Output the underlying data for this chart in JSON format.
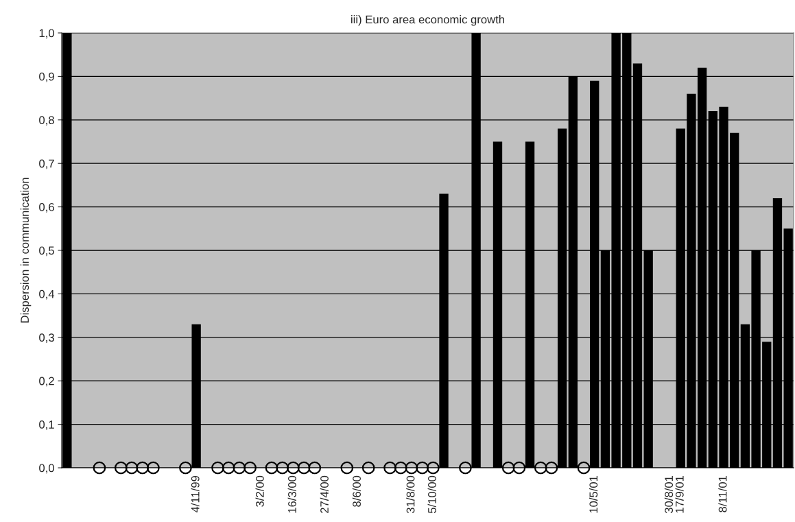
{
  "chart_data": {
    "type": "bar",
    "title": "iii) Euro area economic growth",
    "ylabel": "Dispersion in communication",
    "categories": [
      null,
      null,
      null,
      null,
      null,
      null,
      null,
      null,
      null,
      null,
      null,
      null,
      "4/11/99",
      null,
      null,
      null,
      null,
      null,
      "3/2/00",
      null,
      null,
      "16/3/00",
      null,
      null,
      "27/4/00",
      null,
      null,
      "8/6/00",
      null,
      null,
      null,
      null,
      "31/8/00",
      null,
      "5/10/00",
      null,
      null,
      null,
      null,
      null,
      null,
      null,
      null,
      null,
      null,
      null,
      null,
      null,
      null,
      "10/5/01",
      null,
      null,
      null,
      null,
      null,
      null,
      "30/8/01",
      "17/9/01",
      null,
      null,
      null,
      "8/11/01",
      null,
      null,
      null,
      null,
      null,
      null
    ],
    "series": [
      {
        "color": "#000000",
        "values": [
          1.0,
          null,
          null,
          null,
          null,
          null,
          null,
          null,
          null,
          null,
          null,
          null,
          0.33,
          null,
          null,
          null,
          null,
          null,
          null,
          null,
          null,
          null,
          null,
          null,
          null,
          null,
          null,
          null,
          null,
          null,
          null,
          null,
          null,
          null,
          null,
          0.63,
          null,
          null,
          1.0,
          null,
          0.75,
          null,
          null,
          0.75,
          null,
          null,
          0.78,
          0.9,
          null,
          0.89,
          0.5,
          1.0,
          1.0,
          0.93,
          0.5,
          null,
          null,
          0.78,
          0.86,
          0.92,
          0.82,
          0.83,
          0.77,
          0.33,
          0.5,
          0.29,
          0.62,
          0.55
        ]
      },
      {
        "type": "scatter",
        "marker": "circle",
        "color": "#000000",
        "values": [
          null,
          null,
          null,
          0,
          null,
          0,
          0,
          0,
          0,
          null,
          null,
          0,
          null,
          null,
          0,
          0,
          0,
          0,
          null,
          0,
          0,
          0,
          0,
          0,
          null,
          null,
          0,
          null,
          0,
          null,
          0,
          0,
          0,
          0,
          0,
          null,
          null,
          0,
          null,
          null,
          null,
          0,
          0,
          null,
          0,
          0,
          null,
          null,
          0,
          null,
          null,
          null,
          null,
          null,
          null,
          null,
          null,
          null,
          null,
          null,
          null,
          null,
          null,
          null,
          null,
          null,
          null,
          null
        ]
      }
    ],
    "ylim": [
      0,
      1.0
    ],
    "yticks": [
      {
        "value": 0,
        "label": "0,0"
      },
      {
        "value": 0.1,
        "label": "0,1"
      },
      {
        "value": 0.2,
        "label": "0,2"
      },
      {
        "value": 0.3,
        "label": "0,3"
      },
      {
        "value": 0.4,
        "label": "0,4"
      },
      {
        "value": 0.5,
        "label": "0,5"
      },
      {
        "value": 0.6,
        "label": "0,6"
      },
      {
        "value": 0.7,
        "label": "0,7"
      },
      {
        "value": 0.8,
        "label": "0,8"
      },
      {
        "value": 0.9,
        "label": "0,9"
      },
      {
        "value": 1.0,
        "label": "1,0"
      }
    ],
    "grid": "y",
    "legend": false
  }
}
